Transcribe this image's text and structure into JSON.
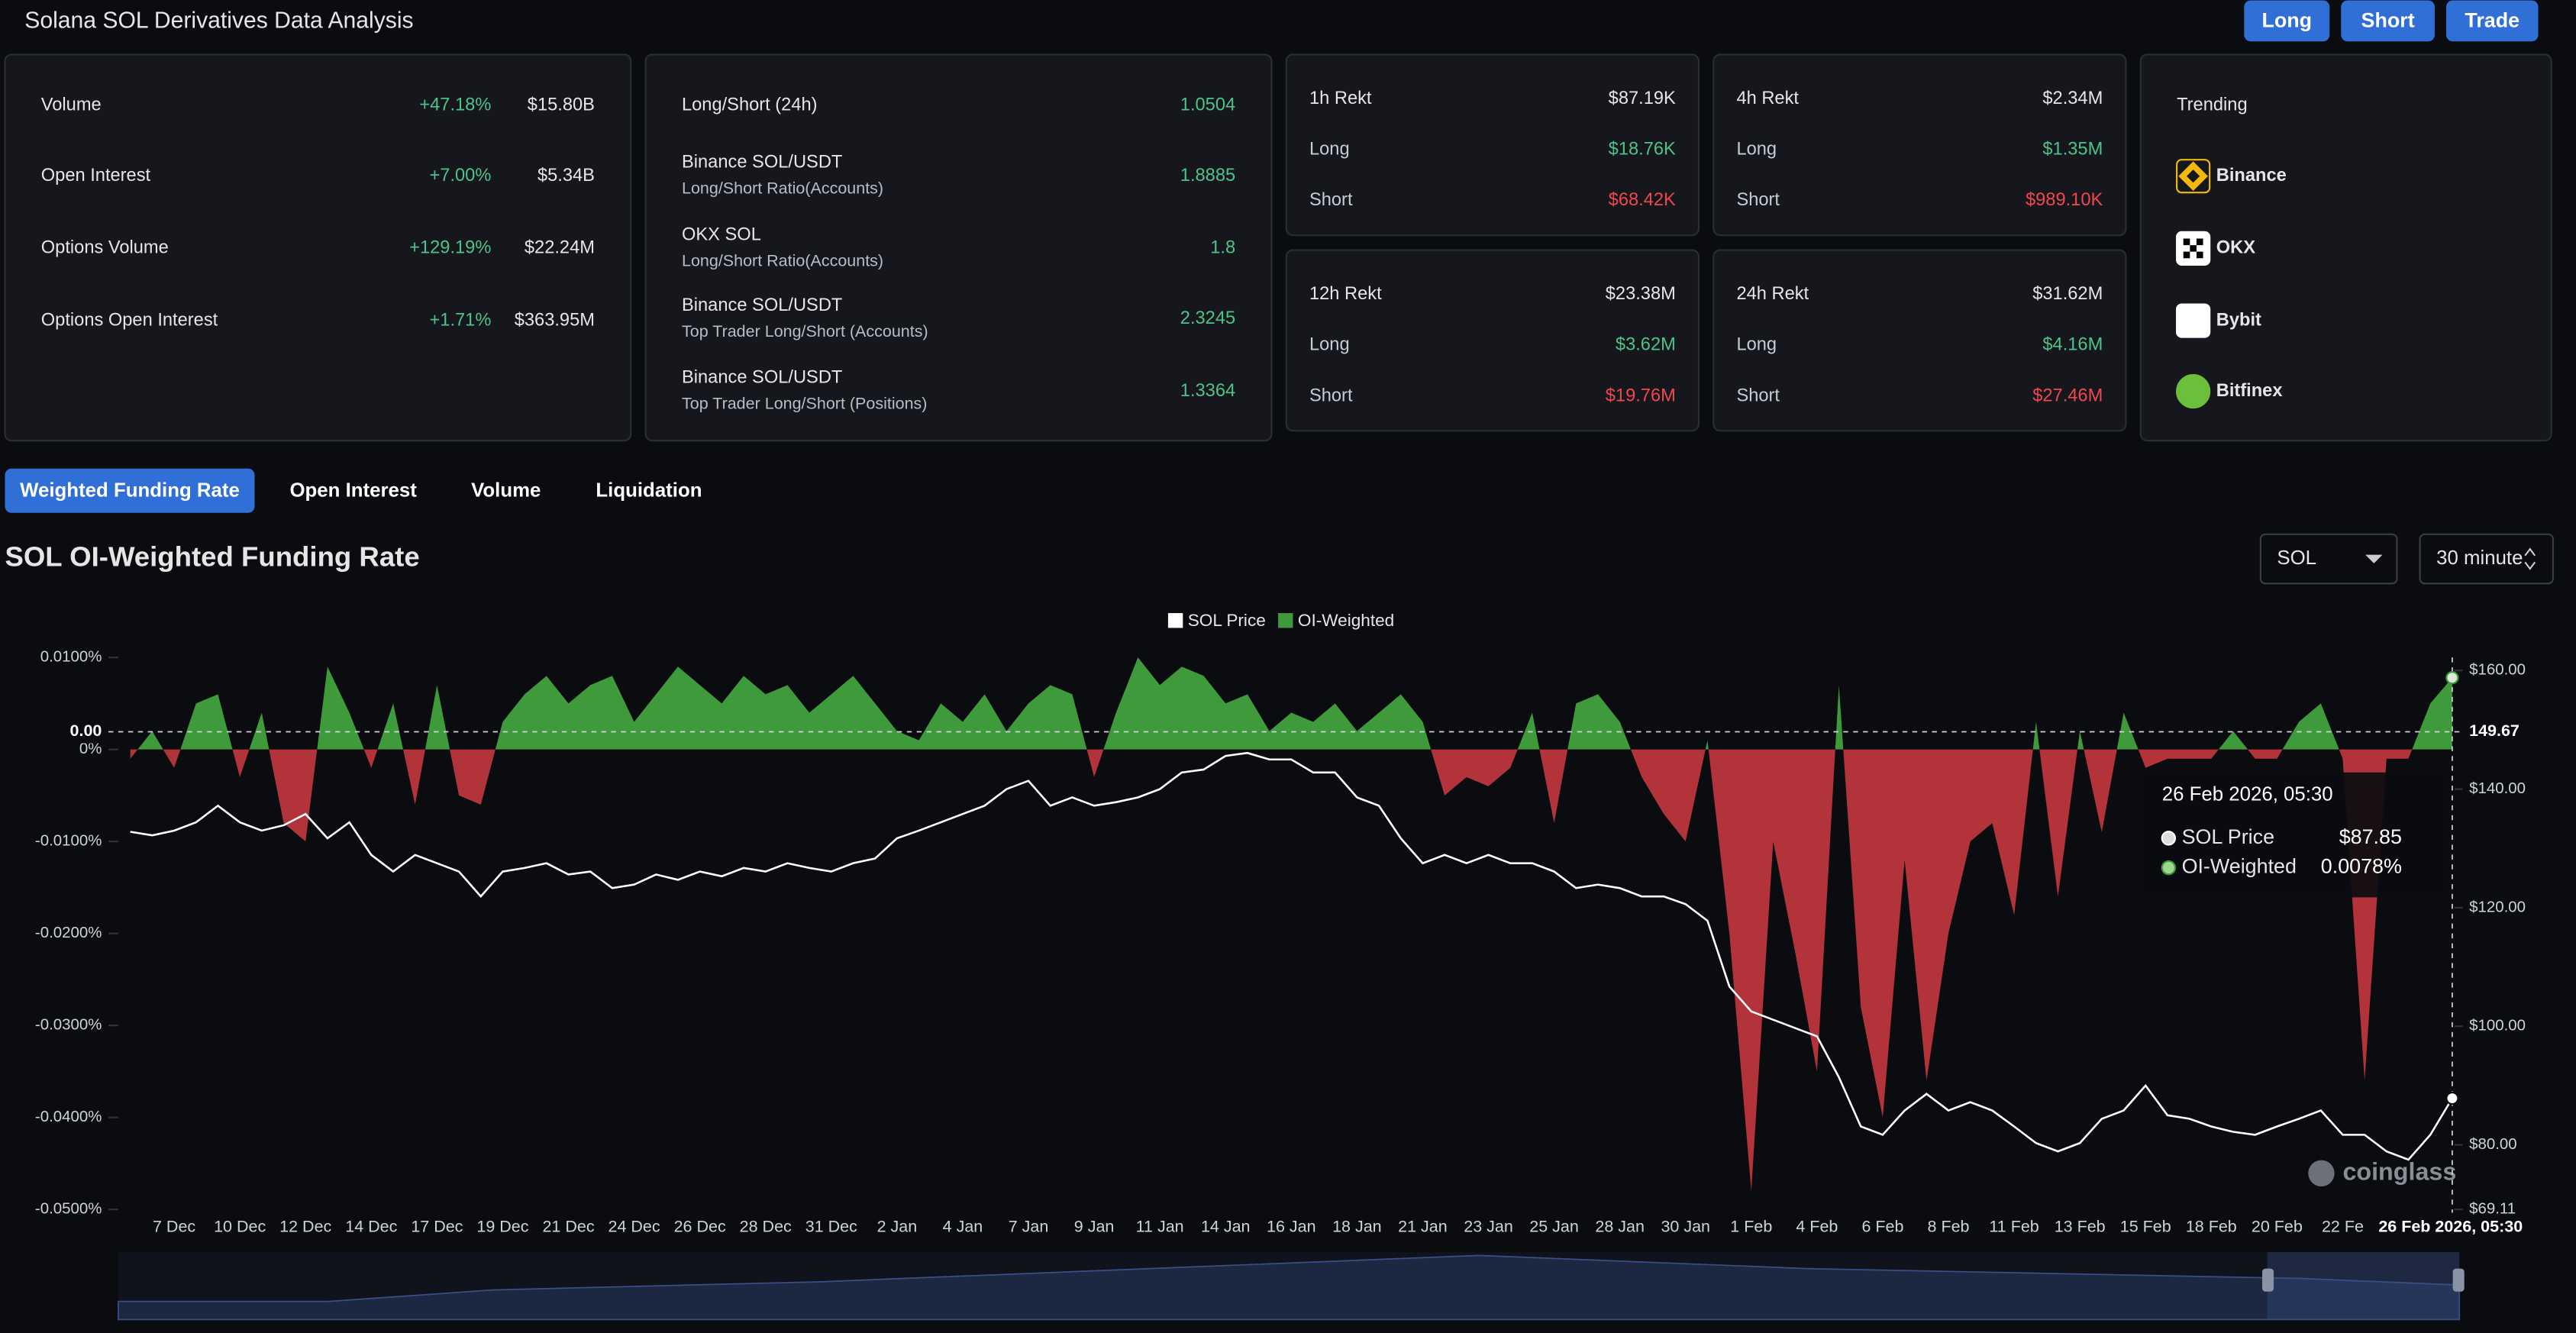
{
  "header": {
    "title": "Solana SOL Derivatives Data Analysis",
    "buttons": [
      "Long",
      "Short",
      "Trade"
    ]
  },
  "market": [
    {
      "label": "Volume",
      "change": "+47.18%",
      "value": "$15.80B"
    },
    {
      "label": "Open Interest",
      "change": "+7.00%",
      "value": "$5.34B"
    },
    {
      "label": "Options Volume",
      "change": "+129.19%",
      "value": "$22.24M"
    },
    {
      "label": "Options Open Interest",
      "change": "+1.71%",
      "value": "$363.95M"
    }
  ],
  "long_short": [
    {
      "label": "Long/Short (24h)",
      "value": "1.0504"
    },
    {
      "label": "Binance SOL/USDT",
      "sublabel": "Long/Short Ratio(Accounts)",
      "value": "1.8885"
    },
    {
      "label": "OKX SOL",
      "sublabel": "Long/Short Ratio(Accounts)",
      "value": "1.8"
    },
    {
      "label": "Binance SOL/USDT",
      "sublabel": "Top Trader Long/Short (Accounts)",
      "value": "2.3245"
    },
    {
      "label": "Binance SOL/USDT",
      "sublabel": "Top Trader Long/Short (Positions)",
      "value": "1.3364"
    }
  ],
  "rekt": [
    {
      "title": "1h Rekt",
      "total": "$87.19K",
      "rows": [
        {
          "label": "Long",
          "value": "$18.76K"
        },
        {
          "label": "Short",
          "value": "$68.42K"
        }
      ]
    },
    {
      "title": "4h Rekt",
      "total": "$2.34M",
      "rows": [
        {
          "label": "Long",
          "value": "$1.35M"
        },
        {
          "label": "Short",
          "value": "$989.10K"
        }
      ]
    },
    {
      "title": "12h Rekt",
      "total": "$23.38M",
      "rows": [
        {
          "label": "Long",
          "value": "$3.62M"
        },
        {
          "label": "Short",
          "value": "$19.76M"
        }
      ]
    },
    {
      "title": "24h Rekt",
      "total": "$31.62M",
      "rows": [
        {
          "label": "Long",
          "value": "$4.16M"
        },
        {
          "label": "Short",
          "value": "$27.46M"
        }
      ]
    }
  ],
  "trending": {
    "title": "Trending",
    "exchanges": [
      "Binance",
      "OKX",
      "Bybit",
      "Bitfinex"
    ]
  },
  "tabs": [
    "Weighted Funding Rate",
    "Open Interest",
    "Volume",
    "Liquidation"
  ],
  "selectors": [
    "SOL",
    "30 minute"
  ],
  "chart_data": {
    "type": "area_line",
    "title": "SOL OI-Weighted Funding Rate",
    "categories": [
      null,
      null,
      "7 Dec",
      null,
      null,
      "10 Dec",
      null,
      null,
      "12 Dec",
      null,
      null,
      "14 Dec",
      null,
      null,
      "17 Dec",
      null,
      null,
      "19 Dec",
      null,
      null,
      "21 Dec",
      null,
      null,
      "24 Dec",
      null,
      null,
      "26 Dec",
      null,
      null,
      "28 Dec",
      null,
      null,
      "31 Dec",
      null,
      null,
      "2 Jan",
      null,
      null,
      "4 Jan",
      null,
      null,
      "7 Jan",
      null,
      null,
      "9 Jan",
      null,
      null,
      "11 Jan",
      null,
      null,
      "14 Jan",
      null,
      null,
      "16 Jan",
      null,
      null,
      "18 Jan",
      null,
      null,
      "21 Jan",
      null,
      null,
      "23 Jan",
      null,
      null,
      "25 Jan",
      null,
      null,
      "28 Jan",
      null,
      null,
      "30 Jan",
      null,
      null,
      "1 Feb",
      null,
      null,
      "4 Feb",
      null,
      null,
      "6 Feb",
      null,
      null,
      "8 Feb",
      null,
      null,
      "11 Feb",
      null,
      null,
      "13 Feb",
      null,
      null,
      "15 Feb",
      null,
      null,
      "18 Feb",
      null,
      null,
      "20 Feb",
      null,
      null,
      "22 Fe",
      null,
      null,
      null,
      null,
      "26 Feb 2026, 05:30"
    ],
    "series": [
      {
        "name": "SOL Price",
        "color": "#ffffff",
        "axis": "y2",
        "values": [
          132.8,
          132.2,
          133,
          134.4,
          137.2,
          134.4,
          133,
          133.9,
          135.8,
          131.7,
          134.4,
          128.9,
          126.1,
          128.9,
          127.5,
          126.1,
          121.9,
          126.1,
          126.7,
          127.5,
          125.6,
          126.1,
          123.3,
          123.9,
          125.6,
          124.7,
          126.1,
          125.3,
          126.7,
          126.1,
          127.5,
          126.7,
          126.1,
          127.5,
          128.3,
          131.7,
          133,
          134.4,
          135.8,
          137.2,
          140,
          141.4,
          137.2,
          138.6,
          137.2,
          137.8,
          138.6,
          140,
          142.8,
          143.3,
          145.6,
          146.1,
          145,
          145,
          142.8,
          142.8,
          138.6,
          137.2,
          131.7,
          127.5,
          128.9,
          127.5,
          128.9,
          127.5,
          127.5,
          126.1,
          123.3,
          123.9,
          123.3,
          121.9,
          121.9,
          120.6,
          117.8,
          106.7,
          102.5,
          101.1,
          99.7,
          98.3,
          91.4,
          83.1,
          81.7,
          85.8,
          88.6,
          85.8,
          87.2,
          85.8,
          83.1,
          80.3,
          78.9,
          80.3,
          84.4,
          85.8,
          90,
          85,
          84.4,
          83.1,
          82.2,
          81.7,
          83.1,
          84.4,
          85.8,
          81.7,
          81.7,
          78.9,
          77.5,
          81.7,
          87.85
        ]
      },
      {
        "name": "OI-Weighted",
        "color": "#3f9a3c",
        "negative_color": "#b3333b",
        "values": [
          -0.001,
          0.002,
          -0.002,
          0.005,
          0.006,
          -0.003,
          0.004,
          -0.008,
          -0.01,
          0.009,
          0.004,
          -0.002,
          0.005,
          -0.006,
          0.007,
          -0.005,
          -0.006,
          0.003,
          0.006,
          0.008,
          0.005,
          0.007,
          0.008,
          0.003,
          0.006,
          0.009,
          0.007,
          0.005,
          0.008,
          0.006,
          0.007,
          0.004,
          0.006,
          0.008,
          0.005,
          0.002,
          0.001,
          0.005,
          0.003,
          0.006,
          0.002,
          0.005,
          0.007,
          0.006,
          -0.003,
          0.004,
          0.01,
          0.007,
          0.009,
          0.008,
          0.005,
          0.006,
          0.002,
          0.004,
          0.003,
          0.005,
          0.002,
          0.004,
          0.006,
          0.003,
          -0.005,
          -0.003,
          -0.004,
          -0.002,
          0.004,
          -0.008,
          0.005,
          0.006,
          0.003,
          -0.003,
          -0.007,
          -0.01,
          0.001,
          -0.02,
          -0.048,
          -0.01,
          -0.022,
          -0.035,
          0.007,
          -0.028,
          -0.04,
          -0.012,
          -0.036,
          -0.02,
          -0.01,
          -0.008,
          -0.018,
          0.003,
          -0.016,
          0.002,
          -0.009,
          0.004,
          -0.002,
          -0.001,
          -0.001,
          -0.001,
          0.002,
          -0.001,
          -0.001,
          0.003,
          0.005,
          -0.001,
          -0.036,
          -0.001,
          -0.001,
          0.005,
          0.0078
        ]
      }
    ],
    "ylim": [
      -0.05,
      0.01
    ],
    "yticks": [
      {
        "value": 0.01,
        "label": "0.0100%"
      },
      {
        "value": 0,
        "label": "0%"
      },
      {
        "value": -0.01,
        "label": "-0.0100%"
      },
      {
        "value": -0.02,
        "label": "-0.0200%"
      },
      {
        "value": -0.03,
        "label": "-0.0300%"
      },
      {
        "value": -0.04,
        "label": "-0.0400%"
      },
      {
        "value": -0.05,
        "label": "-0.0500%"
      }
    ],
    "y2lim": [
      69.11,
      162.2
    ],
    "y2ticks": [
      {
        "value": 160,
        "label": "$160.00"
      },
      {
        "value": 140,
        "label": "$140.00"
      },
      {
        "value": 120,
        "label": "$120.00"
      },
      {
        "value": 100,
        "label": "$100.00"
      },
      {
        "value": 80,
        "label": "$80.00"
      },
      {
        "value": 69.11,
        "label": "$69.11"
      }
    ],
    "crosshair": {
      "y2": 149.67,
      "y_label": "0.00"
    },
    "tooltip": {
      "values": [
        "$87.85",
        "0.0078%"
      ]
    },
    "watermark": "coinglass"
  }
}
